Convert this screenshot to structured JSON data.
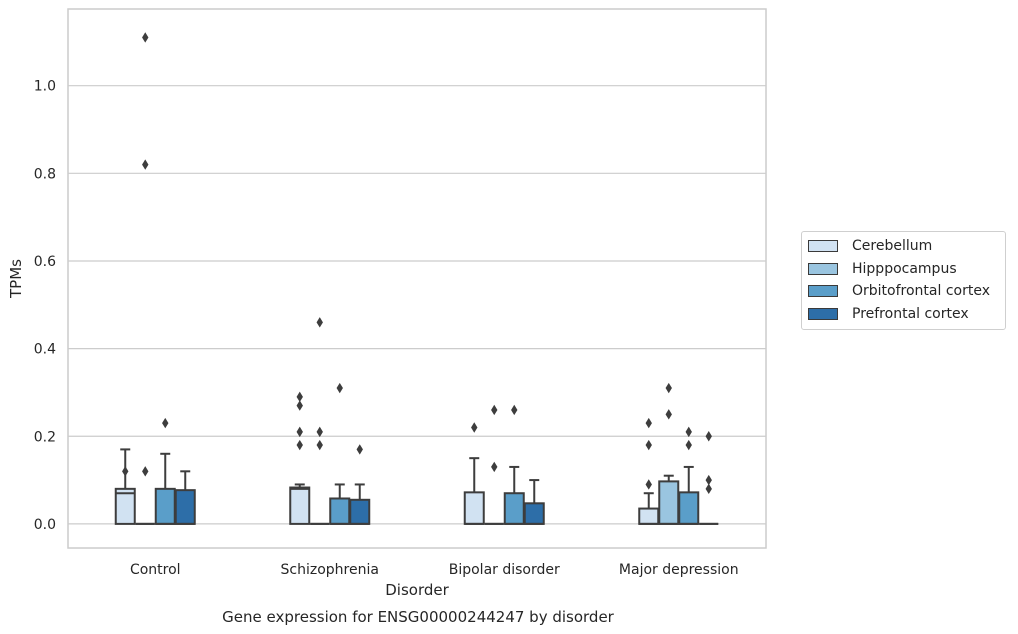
{
  "chart_data": {
    "type": "box",
    "title": "Gene expression for ENSG00000244247 by disorder",
    "xlabel": "Disorder",
    "ylabel": "TPMs",
    "ylim": [
      -0.055,
      1.175
    ],
    "yticks": [
      0.0,
      0.2,
      0.4,
      0.6,
      0.8,
      1.0
    ],
    "ytick_labels": [
      "0.0",
      "0.2",
      "0.4",
      "0.6",
      "0.8",
      "1.0"
    ],
    "grid": true,
    "legend_position": "right",
    "categories": [
      "Control",
      "Schizophrenia",
      "Bipolar disorder",
      "Major depression"
    ],
    "series": [
      {
        "name": "Cerebellum",
        "color": "#d1e2f2",
        "boxes": [
          {
            "q1": 0.0,
            "median": 0.07,
            "q3": 0.08,
            "whisker_low": 0.0,
            "whisker_high": 0.17,
            "outliers": [
              0.12
            ]
          },
          {
            "q1": 0.0,
            "median": 0.08,
            "q3": 0.083,
            "whisker_low": 0.0,
            "whisker_high": 0.09,
            "outliers": [
              0.29,
              0.27,
              0.21,
              0.18
            ]
          },
          {
            "q1": 0.0,
            "median": 0.0,
            "q3": 0.072,
            "whisker_low": 0.0,
            "whisker_high": 0.15,
            "outliers": [
              0.22
            ]
          },
          {
            "q1": 0.0,
            "median": 0.0,
            "q3": 0.035,
            "whisker_low": 0.0,
            "whisker_high": 0.07,
            "outliers": [
              0.09,
              0.18,
              0.23
            ]
          }
        ]
      },
      {
        "name": "Hipppocampus",
        "color": "#9ac5e0",
        "boxes": [
          {
            "q1": 0.0,
            "median": 0.0,
            "q3": 0.0,
            "whisker_low": 0.0,
            "whisker_high": 0.0,
            "outliers": [
              0.12,
              1.11,
              0.82
            ]
          },
          {
            "q1": 0.0,
            "median": 0.0,
            "q3": 0.0,
            "whisker_low": 0.0,
            "whisker_high": 0.0,
            "outliers": [
              0.46,
              0.21,
              0.18
            ]
          },
          {
            "q1": 0.0,
            "median": 0.0,
            "q3": 0.0,
            "whisker_low": 0.0,
            "whisker_high": 0.0,
            "outliers": [
              0.26,
              0.13
            ]
          },
          {
            "q1": 0.0,
            "median": 0.0,
            "q3": 0.097,
            "whisker_low": 0.0,
            "whisker_high": 0.11,
            "outliers": [
              0.31,
              0.25
            ]
          }
        ]
      },
      {
        "name": "Orbitofrontal cortex",
        "color": "#5a9ec9",
        "boxes": [
          {
            "q1": 0.0,
            "median": 0.0,
            "q3": 0.08,
            "whisker_low": 0.0,
            "whisker_high": 0.16,
            "outliers": [
              0.23
            ]
          },
          {
            "q1": 0.0,
            "median": 0.0,
            "q3": 0.058,
            "whisker_low": 0.0,
            "whisker_high": 0.09,
            "outliers": [
              0.31
            ]
          },
          {
            "q1": 0.0,
            "median": 0.0,
            "q3": 0.07,
            "whisker_low": 0.0,
            "whisker_high": 0.13,
            "outliers": [
              0.26
            ]
          },
          {
            "q1": 0.0,
            "median": 0.0,
            "q3": 0.072,
            "whisker_low": 0.0,
            "whisker_high": 0.13,
            "outliers": [
              0.21,
              0.18
            ]
          }
        ]
      },
      {
        "name": "Prefrontal cortex",
        "color": "#2d6ea8",
        "boxes": [
          {
            "q1": 0.0,
            "median": 0.0,
            "q3": 0.077,
            "whisker_low": 0.0,
            "whisker_high": 0.12,
            "outliers": []
          },
          {
            "q1": 0.0,
            "median": 0.0,
            "q3": 0.055,
            "whisker_low": 0.0,
            "whisker_high": 0.09,
            "outliers": [
              0.17
            ]
          },
          {
            "q1": 0.0,
            "median": 0.0,
            "q3": 0.047,
            "whisker_low": 0.0,
            "whisker_high": 0.1,
            "outliers": []
          },
          {
            "q1": 0.0,
            "median": 0.0,
            "q3": 0.0,
            "whisker_low": 0.0,
            "whisker_high": 0.0,
            "outliers": [
              0.2,
              0.1,
              0.08
            ]
          }
        ]
      }
    ]
  }
}
